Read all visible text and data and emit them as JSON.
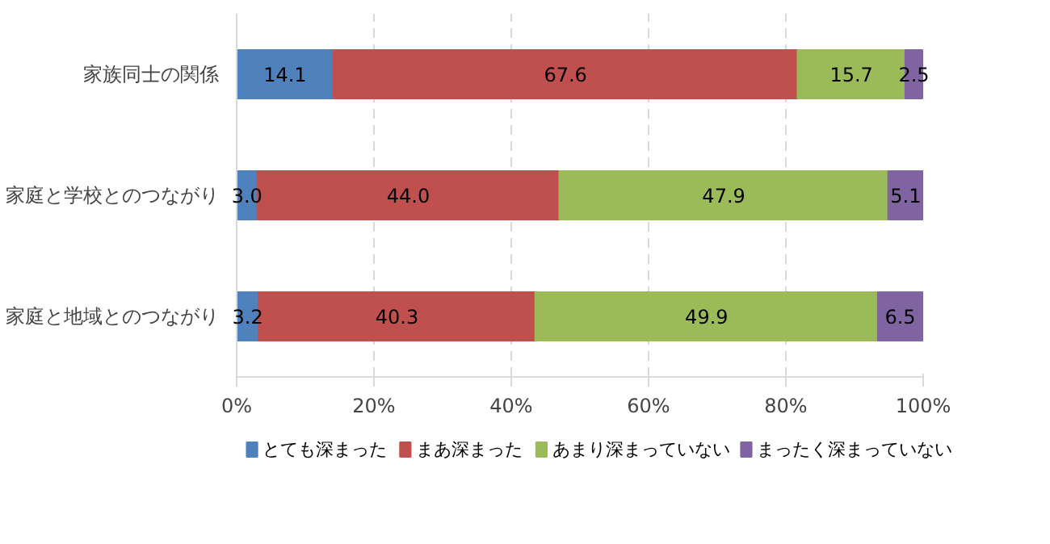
{
  "chart_data": {
    "type": "bar",
    "orientation": "horizontal",
    "stacked": true,
    "categories": [
      "家族同士の関係",
      "家庭と学校とのつながり",
      "家庭と地域とのつながり"
    ],
    "series": [
      {
        "name": "とても深まった",
        "color": "#4f81bd",
        "values": [
          14.1,
          3.0,
          3.2
        ],
        "value_labels": [
          "14.1",
          "3.0",
          "3.2"
        ]
      },
      {
        "name": "まあ深まった",
        "color": "#c0504d",
        "values": [
          67.6,
          44.0,
          40.3
        ],
        "value_labels": [
          "67.6",
          "44.0",
          "40.3"
        ]
      },
      {
        "name": "あまり深まっていない",
        "color": "#9bbb59",
        "values": [
          15.7,
          47.9,
          49.9
        ],
        "value_labels": [
          "15.7",
          "47.9",
          "49.9"
        ]
      },
      {
        "name": "まったく深まっていない",
        "color": "#8064a2",
        "values": [
          2.5,
          5.1,
          6.5
        ],
        "value_labels": [
          "2.5",
          "5.1",
          "6.5"
        ]
      }
    ],
    "xlim": [
      0,
      100
    ],
    "xticks": [
      {
        "value": 0,
        "label": "0%"
      },
      {
        "value": 20,
        "label": "20%"
      },
      {
        "value": 40,
        "label": "40%"
      },
      {
        "value": 60,
        "label": "60%"
      },
      {
        "value": 80,
        "label": "80%"
      },
      {
        "value": 100,
        "label": "100%"
      }
    ],
    "grid": "x",
    "legend": "bottom"
  }
}
